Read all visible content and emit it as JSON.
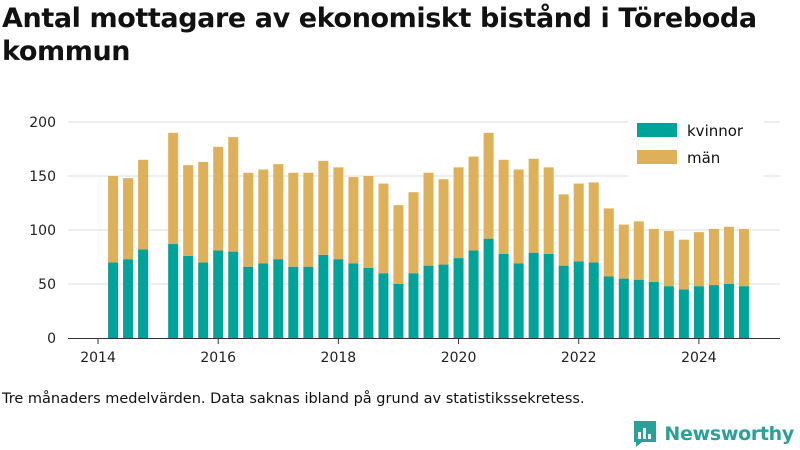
{
  "title": "Antal mottagare av ekonomiskt bistånd i Töreboda kommun",
  "caption": "Tre månaders medelvärden. Data saknas ibland på grund av statistikssekretess.",
  "brand": {
    "name": "Newsworthy",
    "icon": "newsworthy-chart-bubble-icon",
    "color": "#2aa198"
  },
  "chart_data": {
    "type": "bar",
    "stacked": true,
    "title": "Antal mottagare av ekonomiskt bistånd i Töreboda kommun",
    "xlabel": "",
    "ylabel": "",
    "ylim": [
      0,
      200
    ],
    "yticks": [
      0,
      50,
      100,
      150,
      200
    ],
    "xlim": [
      2013.5,
      2025.35
    ],
    "xticks": [
      2014,
      2016,
      2018,
      2020,
      2022,
      2024
    ],
    "grid": true,
    "legend": "top-right",
    "x": [
      2014.25,
      2014.5,
      2014.75,
      2015.25,
      2015.5,
      2015.75,
      2016.0,
      2016.25,
      2016.5,
      2016.75,
      2017.0,
      2017.25,
      2017.5,
      2017.75,
      2018.0,
      2018.25,
      2018.5,
      2018.75,
      2019.0,
      2019.25,
      2019.5,
      2019.75,
      2020.0,
      2020.25,
      2020.5,
      2020.75,
      2021.0,
      2021.25,
      2021.5,
      2021.75,
      2022.0,
      2022.25,
      2022.5,
      2022.75,
      2023.0,
      2023.25,
      2023.5,
      2023.75,
      2024.0,
      2024.25,
      2024.5,
      2024.75
    ],
    "series": [
      {
        "name": "kvinnor",
        "color": "#00a399",
        "values": [
          70,
          73,
          82,
          87,
          76,
          70,
          81,
          80,
          66,
          69,
          73,
          66,
          66,
          77,
          73,
          69,
          65,
          60,
          50,
          60,
          67,
          68,
          74,
          81,
          92,
          78,
          69,
          79,
          78,
          67,
          71,
          70,
          57,
          55,
          54,
          52,
          48,
          45,
          48,
          49,
          50,
          48
        ]
      },
      {
        "name": "män",
        "color": "#dfb05a",
        "values": [
          80,
          75,
          83,
          103,
          84,
          93,
          96,
          106,
          87,
          87,
          88,
          87,
          87,
          87,
          85,
          80,
          85,
          83,
          73,
          75,
          86,
          79,
          84,
          87,
          98,
          87,
          87,
          87,
          80,
          66,
          72,
          74,
          63,
          50,
          54,
          49,
          51,
          46,
          50,
          52,
          53,
          53
        ]
      }
    ]
  }
}
